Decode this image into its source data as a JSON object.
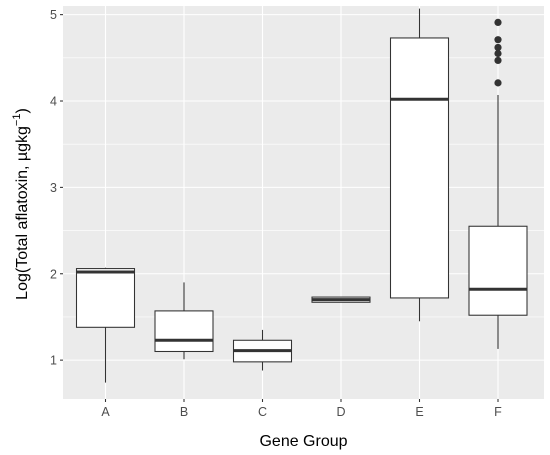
{
  "chart_data": {
    "type": "box",
    "xlabel": "Gene Group",
    "ylabel": {
      "main": "Log(Total aflatoxin, µgkg",
      "superscript": "−1",
      "close": ")"
    },
    "ylim": [
      0.55,
      5.1
    ],
    "yticks": [
      1,
      2,
      3,
      4,
      5
    ],
    "categories": [
      "A",
      "B",
      "C",
      "D",
      "E",
      "F"
    ],
    "boxes": [
      {
        "group": "A",
        "min": 0.74,
        "q1": 1.38,
        "median": 2.02,
        "q3": 2.06,
        "max": 2.07,
        "outliers": []
      },
      {
        "group": "B",
        "min": 1.01,
        "q1": 1.1,
        "median": 1.23,
        "q3": 1.57,
        "max": 1.9,
        "outliers": []
      },
      {
        "group": "C",
        "min": 0.88,
        "q1": 0.98,
        "median": 1.11,
        "q3": 1.23,
        "max": 1.35,
        "outliers": []
      },
      {
        "group": "D",
        "min": 1.67,
        "q1": 1.67,
        "median": 1.7,
        "q3": 1.73,
        "max": 1.73,
        "outliers": []
      },
      {
        "group": "E",
        "min": 1.45,
        "q1": 1.72,
        "median": 4.02,
        "q3": 4.73,
        "max": 5.07,
        "outliers": []
      },
      {
        "group": "F",
        "min": 1.13,
        "q1": 1.52,
        "median": 1.82,
        "q3": 2.55,
        "max": 4.07,
        "outliers": [
          4.21,
          4.47,
          4.55,
          4.62,
          4.71,
          4.91
        ]
      }
    ],
    "grid": true
  },
  "colors": {
    "panel_background": "#EBEBEB",
    "gridline": "#FFFFFF",
    "box_fill": "#FFFFFF",
    "box_stroke": "#333333",
    "tick_label": "#4D4D4D",
    "axis_title": "#000000"
  }
}
